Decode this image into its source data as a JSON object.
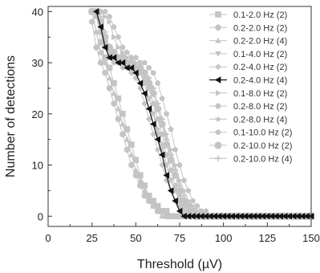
{
  "chart_data": {
    "type": "line",
    "title": "",
    "xlabel": "Threshold (µV)",
    "ylabel": "Number of detections",
    "xlim": [
      0,
      150
    ],
    "ylim": [
      -2,
      41
    ],
    "x_ticks": [
      0,
      25,
      50,
      75,
      100,
      125,
      150
    ],
    "y_ticks": [
      0,
      10,
      20,
      30,
      40
    ],
    "x_tick_labels": [
      "0",
      "25",
      "50",
      "75",
      "100",
      "125",
      "150"
    ],
    "y_tick_labels": [
      "0",
      "10",
      "20",
      "30",
      "40"
    ],
    "grid": false,
    "legend_position": "top-right",
    "x": [
      25,
      27.5,
      30,
      32.5,
      35,
      37.5,
      40,
      42.5,
      45,
      47.5,
      50,
      52.5,
      55,
      57.5,
      60,
      62.5,
      65,
      67.5,
      70,
      72.5,
      75,
      77.5,
      80,
      82.5,
      85,
      87.5,
      90,
      92.5,
      95,
      97.5,
      100,
      102.5,
      105,
      107.5,
      110,
      112.5,
      115,
      117.5,
      120,
      122.5,
      125,
      127.5,
      130,
      132.5,
      135,
      137.5,
      140,
      142.5,
      145,
      147.5,
      150
    ],
    "series": [
      {
        "name": "0.1-2.0 Hz (2)",
        "marker": "square",
        "color": "#c4c4c4",
        "values": [
          40,
          40,
          34,
          31,
          29,
          26,
          23,
          20,
          17,
          14,
          11,
          8,
          6,
          4,
          3,
          2,
          1,
          1,
          0,
          0,
          0,
          0,
          0,
          0,
          0,
          0,
          0,
          0,
          0,
          0,
          0,
          0,
          0,
          0,
          0,
          0,
          0,
          0,
          0,
          0,
          0,
          0,
          0,
          0,
          0,
          0,
          0,
          0,
          0,
          0,
          0
        ]
      },
      {
        "name": "0.2-2.0 Hz (2)",
        "marker": "circle",
        "color": "#c4c4c4",
        "values": [
          38,
          33,
          30,
          28,
          25,
          22,
          19,
          16,
          13,
          10,
          8,
          6,
          4,
          3,
          2,
          1,
          1,
          0,
          0,
          0,
          0,
          0,
          0,
          0,
          0,
          0,
          0,
          0,
          0,
          0,
          0,
          0,
          0,
          0,
          0,
          0,
          0,
          0,
          0,
          0,
          0,
          0,
          0,
          0,
          0,
          0,
          0,
          0,
          0,
          0,
          0
        ]
      },
      {
        "name": "0.2-2.0 Hz (4)",
        "marker": "triangle-up",
        "color": "#c4c4c4",
        "values": [
          40,
          36,
          32,
          30,
          27,
          24,
          21,
          18,
          15,
          12,
          9,
          7,
          5,
          3,
          2,
          1,
          0,
          0,
          0,
          0,
          0,
          0,
          0,
          0,
          0,
          0,
          0,
          0,
          0,
          0,
          0,
          0,
          0,
          0,
          0,
          0,
          0,
          0,
          0,
          0,
          0,
          0,
          0,
          0,
          0,
          0,
          0,
          0,
          0,
          0,
          0
        ]
      },
      {
        "name": "0.1-4.0 Hz (2)",
        "marker": "triangle-down",
        "color": "#c4c4c4",
        "values": [
          40,
          40,
          38,
          34,
          32,
          31,
          31,
          30,
          30,
          29,
          29,
          28,
          26,
          23,
          20,
          16,
          13,
          10,
          7,
          5,
          3,
          2,
          1,
          1,
          0,
          0,
          0,
          0,
          0,
          0,
          0,
          0,
          0,
          0,
          0,
          0,
          0,
          0,
          0,
          0,
          0,
          0,
          0,
          0,
          0,
          0,
          0,
          0,
          0,
          0,
          0
        ]
      },
      {
        "name": "0.2-4.0 Hz (2)",
        "marker": "diamond",
        "color": "#c4c4c4",
        "values": [
          40,
          36,
          32,
          31,
          31,
          30,
          30,
          29,
          29,
          28,
          27,
          25,
          22,
          19,
          16,
          13,
          10,
          7,
          5,
          3,
          2,
          1,
          0,
          0,
          0,
          0,
          0,
          0,
          0,
          0,
          0,
          0,
          0,
          0,
          0,
          0,
          0,
          0,
          0,
          0,
          0,
          0,
          0,
          0,
          0,
          0,
          0,
          0,
          0,
          0,
          0
        ]
      },
      {
        "name": "0.2-4.0 Hz (4)",
        "marker": "triangle-left",
        "color": "#111111",
        "values": [
          null,
          40,
          37,
          33,
          31,
          31,
          30,
          30,
          29,
          29,
          28,
          26,
          24,
          21,
          18,
          15,
          12,
          8,
          5,
          3,
          1,
          0,
          0,
          0,
          0,
          0,
          0,
          0,
          0,
          0,
          0,
          0,
          0,
          0,
          0,
          0,
          0,
          0,
          0,
          0,
          0,
          0,
          0,
          0,
          0,
          0,
          0,
          0,
          0,
          0,
          0
        ]
      },
      {
        "name": "0.1-8.0 Hz (2)",
        "marker": "triangle-right",
        "color": "#c4c4c4",
        "values": [
          40,
          40,
          40,
          39,
          38,
          35,
          33,
          32,
          31,
          31,
          30,
          29,
          28,
          27,
          25,
          22,
          19,
          16,
          13,
          10,
          7,
          5,
          3,
          2,
          1,
          1,
          0,
          0,
          0,
          0,
          0,
          0,
          0,
          0,
          0,
          0,
          0,
          0,
          0,
          0,
          0,
          0,
          0,
          0,
          0,
          0,
          0,
          0,
          0,
          0,
          0
        ]
      },
      {
        "name": "0.2-8.0 Hz (2)",
        "marker": "hexagon",
        "color": "#c4c4c4",
        "values": [
          40,
          39,
          36,
          33,
          31,
          31,
          30,
          30,
          30,
          29,
          29,
          28,
          27,
          25,
          22,
          19,
          16,
          12,
          9,
          6,
          4,
          2,
          1,
          0,
          0,
          0,
          0,
          0,
          0,
          0,
          0,
          0,
          0,
          0,
          0,
          0,
          0,
          0,
          0,
          0,
          0,
          0,
          0,
          0,
          0,
          0,
          0,
          0,
          0,
          0,
          0
        ]
      },
      {
        "name": "0.2-8.0 Hz (4)",
        "marker": "star",
        "color": "#c4c4c4",
        "values": [
          40,
          40,
          37,
          34,
          32,
          31,
          31,
          30,
          30,
          29,
          29,
          28,
          26,
          23,
          20,
          17,
          14,
          10,
          7,
          5,
          3,
          1,
          1,
          0,
          0,
          0,
          0,
          0,
          0,
          0,
          0,
          0,
          0,
          0,
          0,
          0,
          0,
          0,
          0,
          0,
          0,
          0,
          0,
          0,
          0,
          0,
          0,
          0,
          0,
          0,
          0
        ]
      },
      {
        "name": "0.1-10.0 Hz (2)",
        "marker": "pentagon",
        "color": "#c4c4c4",
        "values": [
          40,
          40,
          40,
          40,
          39,
          37,
          35,
          33,
          32,
          31,
          31,
          30,
          30,
          29,
          28,
          26,
          23,
          20,
          17,
          13,
          10,
          7,
          5,
          3,
          2,
          1,
          1,
          0,
          0,
          0,
          0,
          0,
          0,
          0,
          0,
          0,
          0,
          0,
          0,
          0,
          0,
          0,
          0,
          0,
          0,
          0,
          0,
          0,
          0,
          0,
          0
        ]
      },
      {
        "name": "0.2-10.0 Hz (2)",
        "marker": "circle-large",
        "color": "#c4c4c4",
        "values": [
          40,
          40,
          38,
          35,
          33,
          32,
          31,
          31,
          30,
          30,
          29,
          29,
          28,
          26,
          24,
          21,
          18,
          14,
          11,
          8,
          5,
          3,
          2,
          1,
          0,
          0,
          0,
          0,
          0,
          0,
          0,
          0,
          0,
          0,
          0,
          0,
          0,
          0,
          0,
          0,
          0,
          0,
          0,
          0,
          0,
          0,
          0,
          0,
          0,
          0,
          0
        ]
      },
      {
        "name": "0.2-10.0 Hz (4)",
        "marker": "plus",
        "color": "#c4c4c4",
        "values": [
          40,
          40,
          39,
          36,
          33,
          32,
          31,
          31,
          30,
          30,
          29,
          29,
          28,
          27,
          25,
          22,
          19,
          15,
          12,
          9,
          6,
          4,
          2,
          1,
          1,
          0,
          0,
          0,
          0,
          0,
          0,
          0,
          0,
          0,
          0,
          0,
          0,
          0,
          0,
          0,
          0,
          0,
          0,
          0,
          0,
          0,
          0,
          0,
          0,
          0,
          0
        ]
      }
    ]
  }
}
